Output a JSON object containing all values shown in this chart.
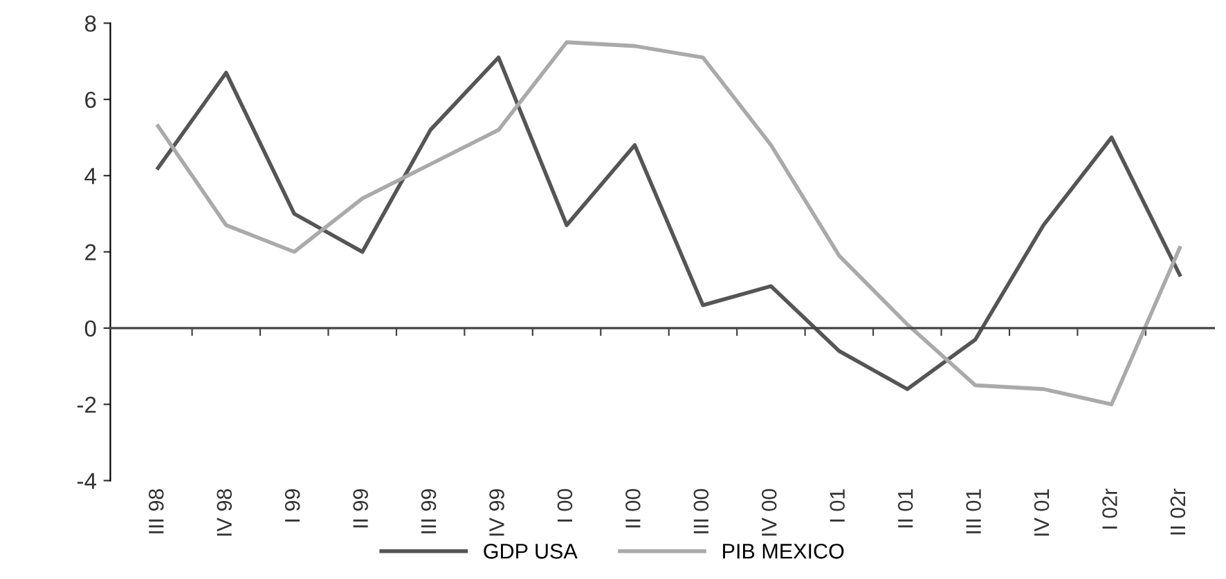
{
  "chart_data": {
    "type": "line",
    "categories": [
      "III 98",
      "IV 98",
      "I 99",
      "II 99",
      "III 99",
      "IV 99",
      "I 00",
      "II 00",
      "III 00",
      "IV 00",
      "I 01",
      "II 01",
      "III 01",
      "IV 01",
      "I 02r",
      "II 02r"
    ],
    "series": [
      {
        "name": "GDP USA",
        "color": "#555555",
        "values": [
          4.2,
          6.7,
          3.0,
          2.0,
          5.2,
          7.1,
          2.7,
          4.8,
          0.6,
          1.1,
          -0.6,
          -1.6,
          -0.3,
          2.7,
          5.0,
          1.4
        ]
      },
      {
        "name": "PIB MEXICO",
        "color": "#aaaaaa",
        "values": [
          5.3,
          2.7,
          2.0,
          3.4,
          4.3,
          5.2,
          7.5,
          7.4,
          7.1,
          4.8,
          1.9,
          0.1,
          -1.5,
          -1.6,
          -2.0,
          2.1
        ]
      }
    ],
    "ylim": [
      -4,
      8
    ],
    "yticks": [
      -4,
      -2,
      0,
      2,
      4,
      6,
      8
    ],
    "legend": "bottom",
    "marker": "none",
    "line_style": "solid"
  }
}
